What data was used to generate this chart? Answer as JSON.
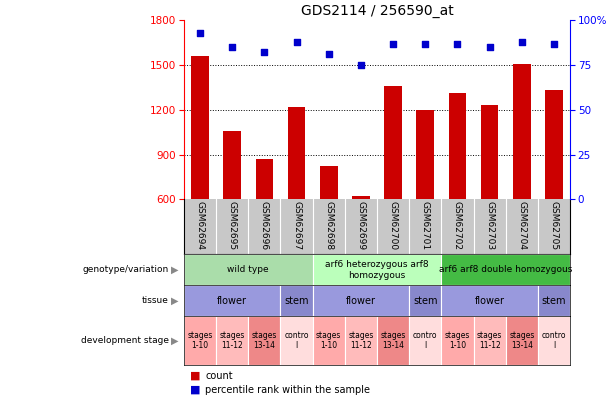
{
  "title": "GDS2114 / 256590_at",
  "samples": [
    "GSM62694",
    "GSM62695",
    "GSM62696",
    "GSM62697",
    "GSM62698",
    "GSM62699",
    "GSM62700",
    "GSM62701",
    "GSM62702",
    "GSM62703",
    "GSM62704",
    "GSM62705"
  ],
  "counts": [
    1560,
    1060,
    870,
    1220,
    820,
    620,
    1360,
    1200,
    1310,
    1230,
    1510,
    1330
  ],
  "percentiles": [
    93,
    85,
    82,
    88,
    81,
    75,
    87,
    87,
    87,
    85,
    88,
    87
  ],
  "ylim_left": [
    600,
    1800
  ],
  "ylim_right": [
    0,
    100
  ],
  "yticks_left": [
    600,
    900,
    1200,
    1500,
    1800
  ],
  "yticks_right": [
    0,
    25,
    50,
    75,
    100
  ],
  "bar_color": "#cc0000",
  "dot_color": "#0000cc",
  "xtick_bg": "#c8c8c8",
  "genotype_groups": [
    {
      "label": "wild type",
      "start": 0,
      "end": 3,
      "color": "#aaddaa"
    },
    {
      "label": "arf6 heterozygous arf8\nhomozygous",
      "start": 4,
      "end": 7,
      "color": "#bbffbb"
    },
    {
      "label": "arf6 arf8 double homozygous",
      "start": 8,
      "end": 11,
      "color": "#44bb44"
    }
  ],
  "tissue_groups": [
    {
      "label": "flower",
      "start": 0,
      "end": 2,
      "color": "#9999dd"
    },
    {
      "label": "stem",
      "start": 3,
      "end": 3,
      "color": "#8888cc"
    },
    {
      "label": "flower",
      "start": 4,
      "end": 6,
      "color": "#9999dd"
    },
    {
      "label": "stem",
      "start": 7,
      "end": 7,
      "color": "#8888cc"
    },
    {
      "label": "flower",
      "start": 8,
      "end": 10,
      "color": "#9999dd"
    },
    {
      "label": "stem",
      "start": 11,
      "end": 11,
      "color": "#8888cc"
    }
  ],
  "stage_groups": [
    {
      "label": "stages\n1-10",
      "start": 0,
      "end": 0,
      "color": "#ffaaaa"
    },
    {
      "label": "stages\n11-12",
      "start": 1,
      "end": 1,
      "color": "#ffbbbb"
    },
    {
      "label": "stages\n13-14",
      "start": 2,
      "end": 2,
      "color": "#ee8888"
    },
    {
      "label": "contro\nl",
      "start": 3,
      "end": 3,
      "color": "#ffdddd"
    },
    {
      "label": "stages\n1-10",
      "start": 4,
      "end": 4,
      "color": "#ffaaaa"
    },
    {
      "label": "stages\n11-12",
      "start": 5,
      "end": 5,
      "color": "#ffbbbb"
    },
    {
      "label": "stages\n13-14",
      "start": 6,
      "end": 6,
      "color": "#ee8888"
    },
    {
      "label": "contro\nl",
      "start": 7,
      "end": 7,
      "color": "#ffdddd"
    },
    {
      "label": "stages\n1-10",
      "start": 8,
      "end": 8,
      "color": "#ffaaaa"
    },
    {
      "label": "stages\n11-12",
      "start": 9,
      "end": 9,
      "color": "#ffbbbb"
    },
    {
      "label": "stages\n13-14",
      "start": 10,
      "end": 10,
      "color": "#ee8888"
    },
    {
      "label": "contro\nl",
      "start": 11,
      "end": 11,
      "color": "#ffdddd"
    }
  ],
  "row_labels": [
    "genotype/variation",
    "tissue",
    "development stage"
  ],
  "legend_count_color": "#cc0000",
  "legend_dot_color": "#0000cc"
}
